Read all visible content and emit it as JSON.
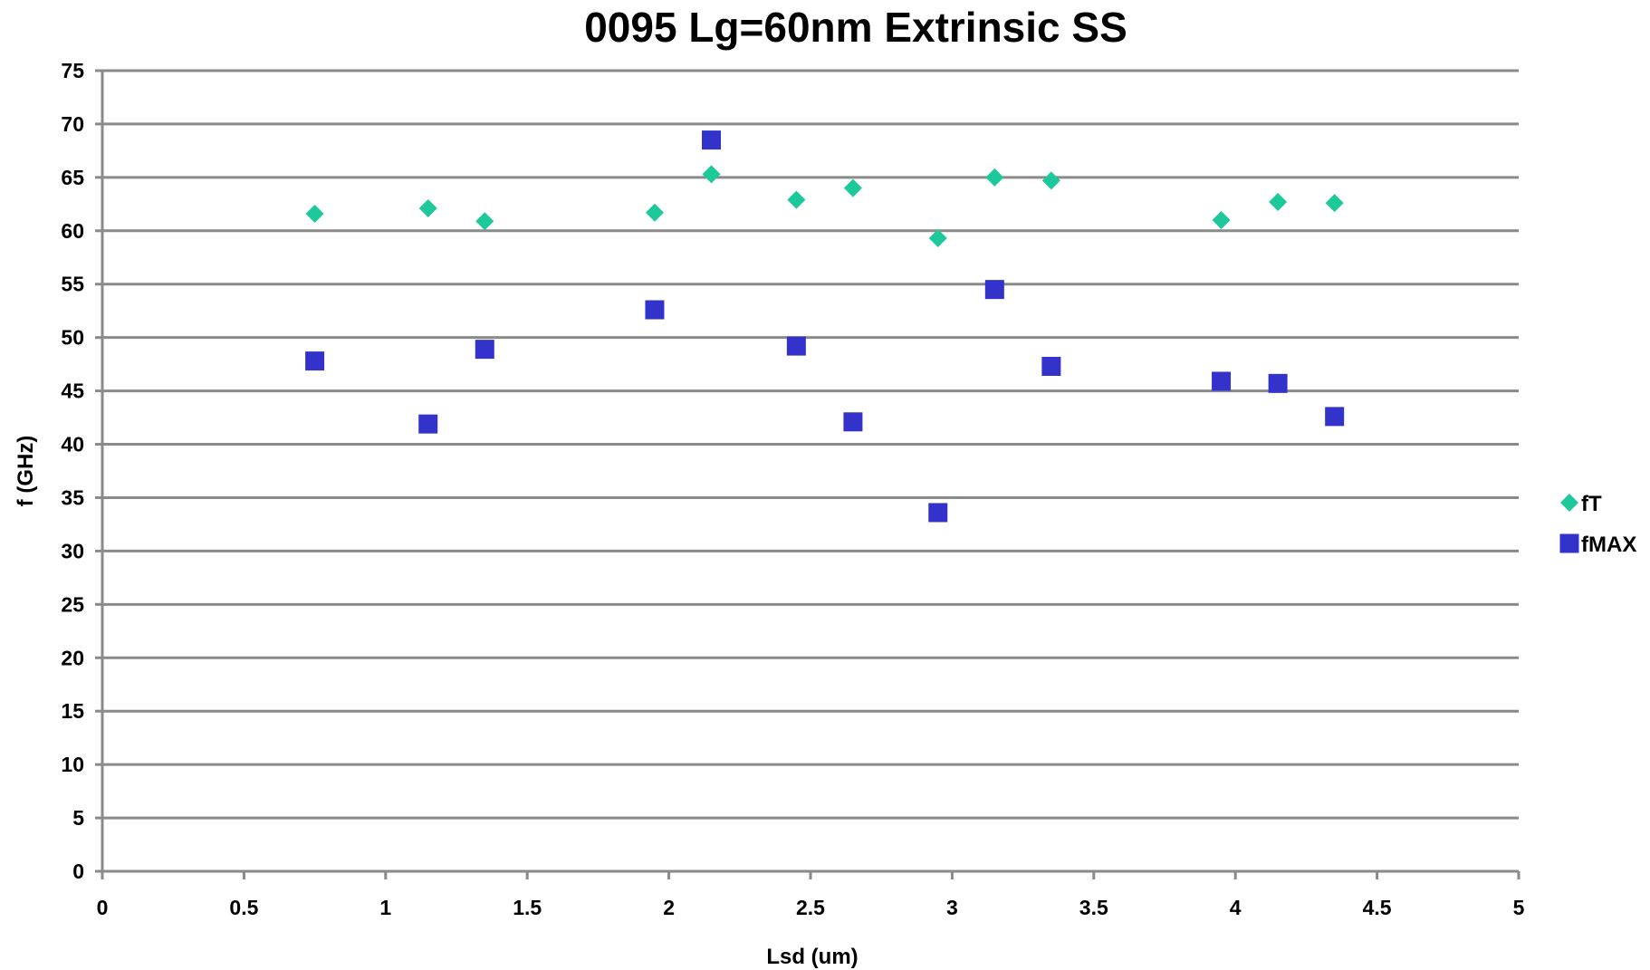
{
  "chart_data": {
    "type": "scatter",
    "title": "0095 Lg=60nm Extrinsic SS",
    "xlabel": "Lsd (um)",
    "ylabel": "f (GHz)",
    "xlim": [
      0,
      5
    ],
    "ylim": [
      0,
      75
    ],
    "x_ticks": [
      "0",
      "0.5",
      "1",
      "1.5",
      "2",
      "2.5",
      "3",
      "3.5",
      "4",
      "4.5",
      "5"
    ],
    "y_ticks": [
      "0",
      "5",
      "10",
      "15",
      "20",
      "25",
      "30",
      "35",
      "40",
      "45",
      "50",
      "55",
      "60",
      "65",
      "70",
      "75"
    ],
    "grid": "horizontal",
    "legend_position": "right",
    "series": [
      {
        "name": "fT",
        "marker": "diamond",
        "color": "#1DC99A",
        "points": [
          [
            0.75,
            61.6
          ],
          [
            1.15,
            62.1
          ],
          [
            1.35,
            60.9
          ],
          [
            1.95,
            61.7
          ],
          [
            2.15,
            65.3
          ],
          [
            2.45,
            62.9
          ],
          [
            2.65,
            64.0
          ],
          [
            2.95,
            59.3
          ],
          [
            3.15,
            65.0
          ],
          [
            3.35,
            64.7
          ],
          [
            3.95,
            61.0
          ],
          [
            4.15,
            62.7
          ],
          [
            4.35,
            62.6
          ]
        ]
      },
      {
        "name": "fMAX",
        "marker": "square",
        "color": "#3333CC",
        "points": [
          [
            0.75,
            47.8
          ],
          [
            1.15,
            41.9
          ],
          [
            1.35,
            48.9
          ],
          [
            1.95,
            52.6
          ],
          [
            2.15,
            68.5
          ],
          [
            2.45,
            49.2
          ],
          [
            2.65,
            42.1
          ],
          [
            2.95,
            33.6
          ],
          [
            3.15,
            54.5
          ],
          [
            3.35,
            47.3
          ],
          [
            3.95,
            45.9
          ],
          [
            4.15,
            45.7
          ],
          [
            4.35,
            42.6
          ]
        ]
      }
    ]
  }
}
